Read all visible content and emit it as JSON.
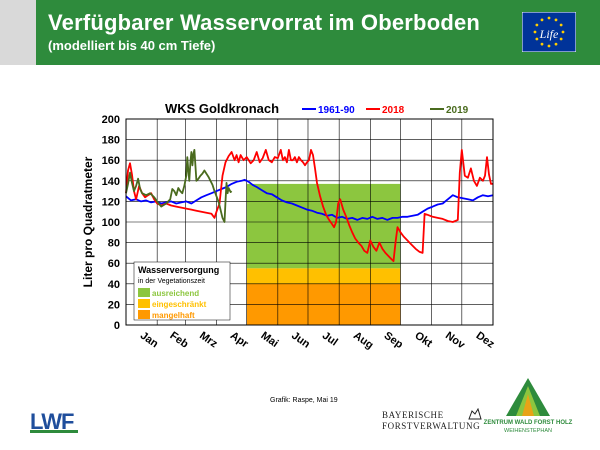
{
  "header": {
    "title": "Verfügbarer Wasservorrat im Oberboden",
    "subtitle": "(modelliert bis 40 cm Tiefe)"
  },
  "chart_data": {
    "type": "line",
    "title": "WKS Goldkronach",
    "xlabel": "",
    "ylabel": "Liter pro Quadratmeter",
    "ylim": [
      0,
      200
    ],
    "yticks": [
      0,
      20,
      40,
      60,
      80,
      100,
      120,
      140,
      160,
      180,
      200
    ],
    "xlim": [
      0,
      365
    ],
    "categories": [
      "Jan",
      "Feb",
      "Mrz",
      "Apr",
      "Mai",
      "Jun",
      "Jul",
      "Aug",
      "Sep",
      "Okt",
      "Nov",
      "Dez"
    ],
    "month_starts": [
      0,
      31,
      59,
      90,
      120,
      151,
      181,
      212,
      243,
      273,
      304,
      334,
      365
    ],
    "grid": true,
    "legend_position": "top",
    "series": [
      {
        "name": "1961-90",
        "color": "#0000ff",
        "points": [
          [
            0,
            125
          ],
          [
            5,
            121
          ],
          [
            10,
            122
          ],
          [
            15,
            120
          ],
          [
            20,
            121
          ],
          [
            25,
            119
          ],
          [
            30,
            120
          ],
          [
            35,
            118
          ],
          [
            40,
            119
          ],
          [
            45,
            120
          ],
          [
            50,
            118
          ],
          [
            55,
            119
          ],
          [
            60,
            120
          ],
          [
            65,
            118
          ],
          [
            70,
            121
          ],
          [
            75,
            124
          ],
          [
            80,
            126
          ],
          [
            85,
            128
          ],
          [
            90,
            130
          ],
          [
            95,
            132
          ],
          [
            100,
            134
          ],
          [
            105,
            137
          ],
          [
            110,
            139
          ],
          [
            115,
            140
          ],
          [
            118,
            141
          ],
          [
            122,
            139
          ],
          [
            126,
            136
          ],
          [
            130,
            134
          ],
          [
            135,
            131
          ],
          [
            140,
            128
          ],
          [
            145,
            127
          ],
          [
            150,
            124
          ],
          [
            155,
            121
          ],
          [
            160,
            119
          ],
          [
            165,
            118
          ],
          [
            170,
            116
          ],
          [
            175,
            114
          ],
          [
            180,
            112
          ],
          [
            185,
            111
          ],
          [
            190,
            109
          ],
          [
            195,
            108
          ],
          [
            200,
            106
          ],
          [
            205,
            107
          ],
          [
            210,
            104
          ],
          [
            215,
            105
          ],
          [
            220,
            103
          ],
          [
            225,
            104
          ],
          [
            230,
            102
          ],
          [
            235,
            104
          ],
          [
            240,
            103
          ],
          [
            245,
            105
          ],
          [
            250,
            103
          ],
          [
            255,
            104
          ],
          [
            260,
            102
          ],
          [
            265,
            104
          ],
          [
            270,
            104
          ],
          [
            275,
            105
          ],
          [
            280,
            105
          ],
          [
            285,
            106
          ],
          [
            290,
            107
          ],
          [
            295,
            110
          ],
          [
            300,
            113
          ],
          [
            305,
            115
          ],
          [
            310,
            117
          ],
          [
            315,
            118
          ],
          [
            320,
            122
          ],
          [
            325,
            126
          ],
          [
            330,
            124
          ],
          [
            335,
            123
          ],
          [
            340,
            122
          ],
          [
            345,
            121
          ],
          [
            350,
            124
          ],
          [
            355,
            126
          ],
          [
            360,
            125
          ],
          [
            365,
            126
          ]
        ]
      },
      {
        "name": "2018",
        "color": "#ff0000",
        "points": [
          [
            0,
            128
          ],
          [
            2,
            150
          ],
          [
            4,
            157
          ],
          [
            6,
            146
          ],
          [
            8,
            130
          ],
          [
            10,
            122
          ],
          [
            13,
            135
          ],
          [
            16,
            128
          ],
          [
            19,
            124
          ],
          [
            22,
            126
          ],
          [
            25,
            128
          ],
          [
            28,
            122
          ],
          [
            31,
            118
          ],
          [
            35,
            116
          ],
          [
            40,
            118
          ],
          [
            45,
            116
          ],
          [
            50,
            115
          ],
          [
            55,
            114
          ],
          [
            60,
            113
          ],
          [
            65,
            112
          ],
          [
            70,
            111
          ],
          [
            75,
            110
          ],
          [
            80,
            109
          ],
          [
            85,
            108
          ],
          [
            88,
            104
          ],
          [
            90,
            110
          ],
          [
            93,
            118
          ],
          [
            96,
            145
          ],
          [
            99,
            158
          ],
          [
            102,
            164
          ],
          [
            105,
            168
          ],
          [
            108,
            160
          ],
          [
            110,
            165
          ],
          [
            112,
            158
          ],
          [
            114,
            165
          ],
          [
            117,
            160
          ],
          [
            120,
            163
          ],
          [
            124,
            157
          ],
          [
            127,
            160
          ],
          [
            130,
            168
          ],
          [
            133,
            158
          ],
          [
            136,
            162
          ],
          [
            139,
            170
          ],
          [
            142,
            160
          ],
          [
            145,
            158
          ],
          [
            148,
            163
          ],
          [
            151,
            162
          ],
          [
            154,
            170
          ],
          [
            156,
            160
          ],
          [
            158,
            163
          ],
          [
            160,
            158
          ],
          [
            162,
            170
          ],
          [
            164,
            160
          ],
          [
            166,
            160
          ],
          [
            168,
            163
          ],
          [
            170,
            158
          ],
          [
            172,
            163
          ],
          [
            174,
            160
          ],
          [
            176,
            158
          ],
          [
            178,
            155
          ],
          [
            180,
            158
          ],
          [
            182,
            160
          ],
          [
            184,
            170
          ],
          [
            186,
            165
          ],
          [
            188,
            152
          ],
          [
            190,
            138
          ],
          [
            193,
            125
          ],
          [
            196,
            115
          ],
          [
            199,
            107
          ],
          [
            202,
            102
          ],
          [
            205,
            98
          ],
          [
            207,
            95
          ],
          [
            209,
            100
          ],
          [
            211,
            118
          ],
          [
            213,
            122
          ],
          [
            216,
            112
          ],
          [
            219,
            105
          ],
          [
            222,
            97
          ],
          [
            225,
            90
          ],
          [
            228,
            84
          ],
          [
            231,
            80
          ],
          [
            234,
            77
          ],
          [
            237,
            72
          ],
          [
            240,
            70
          ],
          [
            243,
            82
          ],
          [
            246,
            76
          ],
          [
            249,
            72
          ],
          [
            252,
            80
          ],
          [
            255,
            74
          ],
          [
            258,
            70
          ],
          [
            261,
            67
          ],
          [
            264,
            64
          ],
          [
            266,
            62
          ],
          [
            268,
            80
          ],
          [
            270,
            95
          ],
          [
            273,
            90
          ],
          [
            276,
            86
          ],
          [
            280,
            82
          ],
          [
            284,
            78
          ],
          [
            288,
            74
          ],
          [
            292,
            71
          ],
          [
            295,
            70
          ],
          [
            297,
            108
          ],
          [
            300,
            107
          ],
          [
            305,
            105
          ],
          [
            310,
            104
          ],
          [
            315,
            103
          ],
          [
            320,
            101
          ],
          [
            325,
            100
          ],
          [
            330,
            102
          ],
          [
            332,
            148
          ],
          [
            334,
            170
          ],
          [
            337,
            145
          ],
          [
            340,
            143
          ],
          [
            343,
            152
          ],
          [
            346,
            140
          ],
          [
            349,
            135
          ],
          [
            352,
            143
          ],
          [
            355,
            140
          ],
          [
            357,
            145
          ],
          [
            359,
            163
          ],
          [
            361,
            146
          ],
          [
            363,
            137
          ],
          [
            365,
            137
          ]
        ]
      },
      {
        "name": "2019",
        "color": "#4a6b1e",
        "points": [
          [
            0,
            128
          ],
          [
            2,
            137
          ],
          [
            4,
            148
          ],
          [
            6,
            138
          ],
          [
            8,
            130
          ],
          [
            10,
            135
          ],
          [
            12,
            142
          ],
          [
            14,
            132
          ],
          [
            16,
            128
          ],
          [
            20,
            126
          ],
          [
            24,
            128
          ],
          [
            28,
            124
          ],
          [
            31,
            120
          ],
          [
            35,
            115
          ],
          [
            40,
            118
          ],
          [
            44,
            122
          ],
          [
            46,
            132
          ],
          [
            48,
            130
          ],
          [
            50,
            126
          ],
          [
            52,
            133
          ],
          [
            54,
            130
          ],
          [
            56,
            128
          ],
          [
            58,
            135
          ],
          [
            60,
            145
          ],
          [
            61,
            163
          ],
          [
            62,
            150
          ],
          [
            63,
            140
          ],
          [
            64,
            158
          ],
          [
            65,
            168
          ],
          [
            66,
            155
          ],
          [
            67,
            166
          ],
          [
            68,
            170
          ],
          [
            69,
            155
          ],
          [
            70,
            140
          ],
          [
            72,
            142
          ],
          [
            74,
            145
          ],
          [
            76,
            147
          ],
          [
            78,
            150
          ],
          [
            80,
            147
          ],
          [
            82,
            144
          ],
          [
            84,
            140
          ],
          [
            86,
            136
          ],
          [
            88,
            130
          ],
          [
            90,
            125
          ],
          [
            92,
            120
          ],
          [
            94,
            112
          ],
          [
            96,
            104
          ],
          [
            98,
            100
          ],
          [
            99,
            120
          ],
          [
            100,
            138
          ],
          [
            101,
            128
          ],
          [
            102,
            133
          ],
          [
            104,
            129
          ],
          [
            105,
            130
          ]
        ]
      }
    ],
    "bands": [
      {
        "name": "ausreichend",
        "color": "#8cc63f",
        "y_from": 55,
        "y_to": 137,
        "x_from": 120,
        "x_to": 273
      },
      {
        "name": "eingeschränkt",
        "color": "#ffc000",
        "y_from": 40,
        "y_to": 55,
        "x_from": 120,
        "x_to": 273
      },
      {
        "name": "mangelhaft",
        "color": "#ff9900",
        "y_from": 0,
        "y_to": 40,
        "x_from": 120,
        "x_to": 273
      }
    ],
    "band_legend": {
      "title": "Wasserversorgung",
      "subtitle": "in der Vegetationszeit",
      "items": [
        {
          "label": "ausreichend",
          "color": "#8cc63f"
        },
        {
          "label": "eingeschränkt",
          "color": "#ffc000"
        },
        {
          "label": "mangelhaft",
          "color": "#ff9900"
        }
      ]
    }
  },
  "credit": "Grafik: Raspe, Mai 19",
  "logos": {
    "lwf": "LWF",
    "eu_life": "Life",
    "bayerische_line1": "BAYERISCHE",
    "bayerische_line2": "FORSTVERWALTUNG",
    "zentrum_line1": "ZENTRUM WALD FORST HOLZ",
    "zentrum_line2": "WEIHENSTEPHAN"
  },
  "colors": {
    "header_bg": "#2e8b3c",
    "header_tab": "#d9d9d9",
    "eu_blue": "#003399",
    "eu_star": "#ffcc00",
    "lwf_blue": "#1f4e9c",
    "lwf_green": "#2e8b3c"
  }
}
